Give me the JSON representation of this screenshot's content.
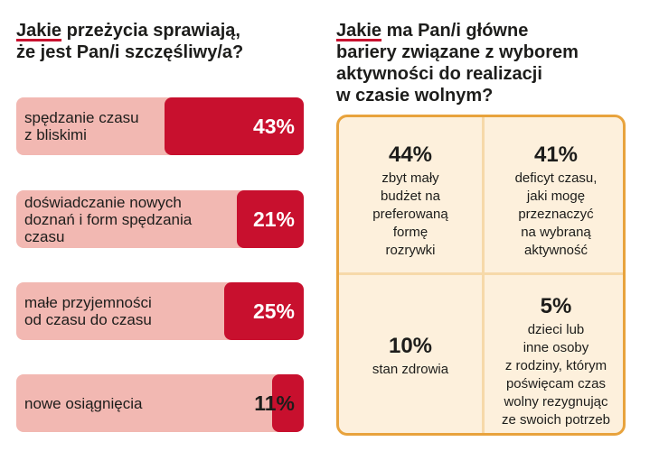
{
  "left": {
    "title_hl": "Jakie",
    "title_rest": " przeżycia sprawiają,\nże jest Pan/i szczęśliwy/a?"
  },
  "right": {
    "title_hl": "Jakie",
    "title_rest": " ma Pan/i główne\nbariery związane z wyborem\naktywności do realizacji\nw czasie wolnym?"
  },
  "chart_data": [
    {
      "type": "bar",
      "title": "Jakie przeżycia sprawiają, że jest Pan/i szczęśliwy/a?",
      "categories": [
        "spędzanie czasu\nz bliskimi",
        "doświadczanie nowych\ndoznań i form spędzania\nczasu",
        "małe przyjemności\nod czasu do czasu",
        "nowe osiągnięcia"
      ],
      "values": [
        43,
        21,
        25,
        11
      ],
      "labels": [
        "43%",
        "21%",
        "25%",
        "11%"
      ],
      "ylim": [
        0,
        100
      ],
      "colors": {
        "fill": "#c8102e",
        "track": "#f2b8b2"
      }
    },
    {
      "type": "table",
      "title": "Jakie ma Pan/i główne bariery związane z wyborem aktywności do realizacji w czasie wolnym?",
      "cells": [
        {
          "pct": "44%",
          "text": "zbyt mały\nbudżet na\npreferowaną\nformę\nrozrywki",
          "value": 44
        },
        {
          "pct": "41%",
          "text": "deficyt czasu,\njaki mogę\nprzeznaczyć\nna wybraną\naktywność",
          "value": 41
        },
        {
          "pct": "10%",
          "text": "stan zdrowia",
          "value": 10
        },
        {
          "pct": "5%",
          "text": "dzieci lub\ninne osoby\nz rodziny, którym\npoświęcam czas\nwolny rezygnując\nze swoich potrzeb",
          "value": 5
        }
      ],
      "colors": {
        "border": "#e8a33d",
        "background": "#fdf0dc",
        "divider": "#f6d9a9"
      }
    }
  ]
}
